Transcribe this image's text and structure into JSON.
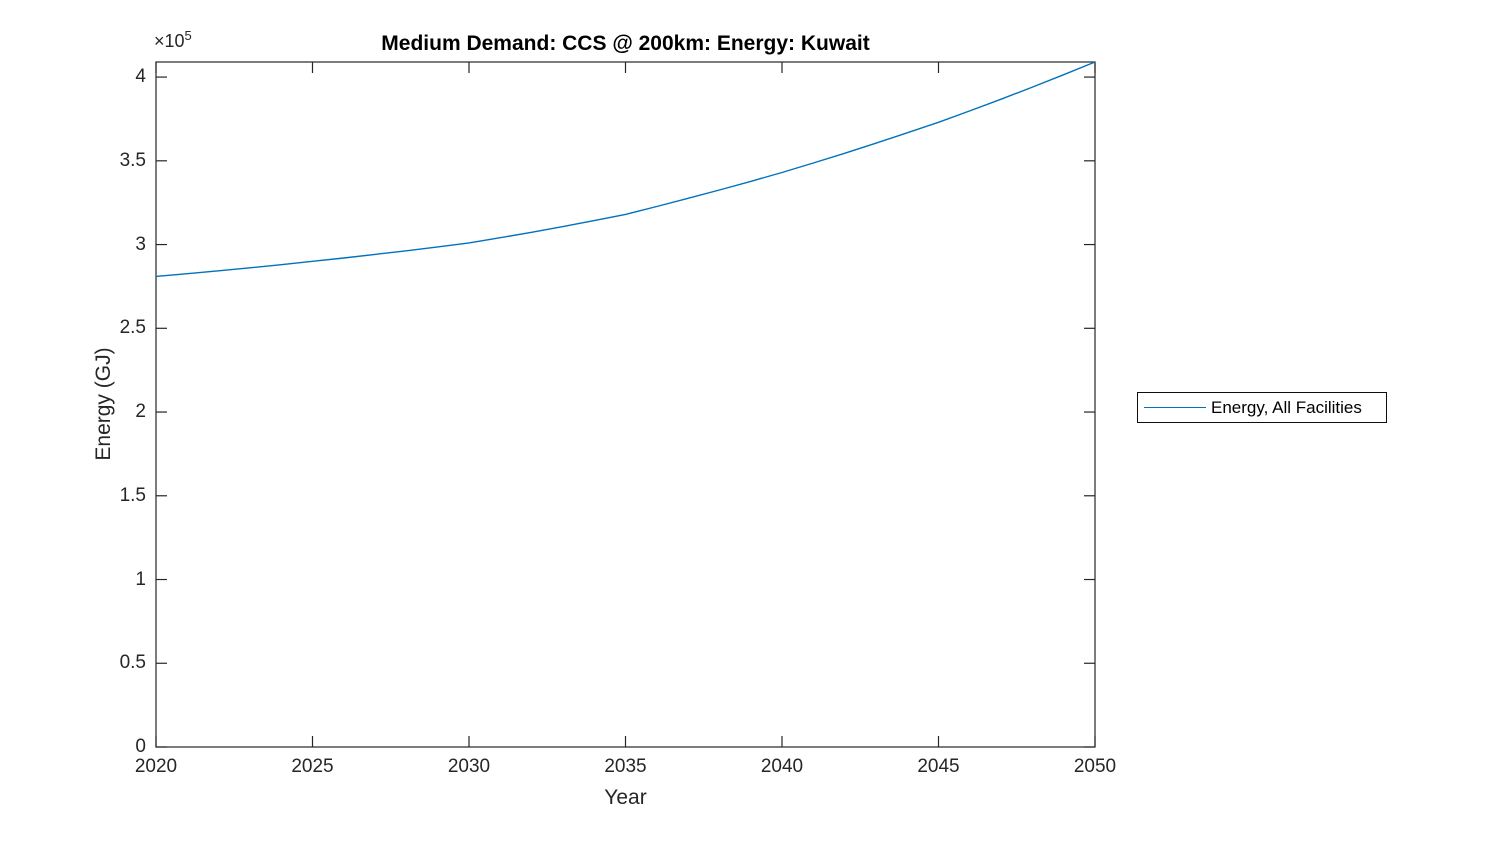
{
  "figure": {
    "title": "Medium Demand: CCS @ 200km: Energy: Kuwait",
    "x_label": "Year",
    "y_label": "Energy (GJ)",
    "y_multiplier_base": "×10",
    "y_multiplier_exp": "5"
  },
  "colors": {
    "line": "#0072BD",
    "axis": "#262626",
    "title": "#000000",
    "background": "#ffffff"
  },
  "chart_data": {
    "type": "line",
    "title": "Medium Demand: CCS @ 200km: Energy: Kuwait",
    "xlabel": "Year",
    "ylabel": "Energy (GJ)",
    "y_axis_offset_text": "×10^5",
    "grid": false,
    "legend_position": "outside-right",
    "legend_entries": [
      "Energy, All Facilities"
    ],
    "xlim": [
      2020,
      2050
    ],
    "ylim": [
      0,
      409000
    ],
    "x_ticks": [
      2020,
      2025,
      2030,
      2035,
      2040,
      2045,
      2050
    ],
    "x_tick_labels": [
      "2020",
      "2025",
      "2030",
      "2035",
      "2040",
      "2045",
      "2050"
    ],
    "y_ticks": [
      0,
      50000,
      100000,
      150000,
      200000,
      250000,
      300000,
      350000,
      400000
    ],
    "y_tick_labels": [
      "0",
      "0.5",
      "1",
      "1.5",
      "2",
      "2.5",
      "3",
      "3.5",
      "4"
    ],
    "series": [
      {
        "name": "Energy, All Facilities",
        "color": "#0072BD",
        "x": [
          2020,
          2021,
          2022,
          2023,
          2024,
          2025,
          2026,
          2027,
          2028,
          2029,
          2030,
          2031,
          2032,
          2033,
          2034,
          2035,
          2036,
          2037,
          2038,
          2039,
          2040,
          2041,
          2042,
          2043,
          2044,
          2045,
          2046,
          2047,
          2048,
          2049,
          2050
        ],
        "y": [
          281000,
          282600,
          284300,
          286100,
          288000,
          290000,
          292000,
          294100,
          296300,
          298600,
          301000,
          304100,
          307300,
          310700,
          314300,
          318000,
          322700,
          327600,
          332600,
          337700,
          343000,
          348700,
          354500,
          360500,
          366700,
          373000,
          379800,
          386800,
          394000,
          401400,
          409000
        ]
      }
    ]
  }
}
